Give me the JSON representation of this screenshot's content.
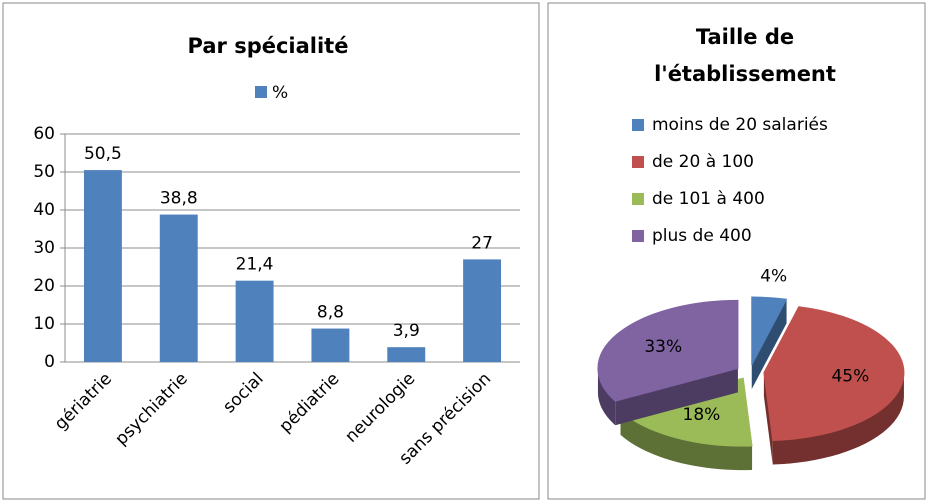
{
  "chart_data": [
    {
      "type": "bar",
      "title": "Par spécialité",
      "series_name": "%",
      "color": "#4f81bd",
      "categories": [
        "gériatrie",
        "psychiatrie",
        "social",
        "pédiatrie",
        "neurologie",
        "sans précision"
      ],
      "values": [
        50.5,
        38.8,
        21.4,
        8.8,
        3.9,
        27
      ],
      "value_labels": [
        "50,5",
        "38,8",
        "21,4",
        "8,8",
        "3,9",
        "27"
      ],
      "ylim": [
        0,
        60
      ],
      "yticks": [
        0,
        10,
        20,
        30,
        40,
        50,
        60
      ],
      "grid": true,
      "legend": "top"
    },
    {
      "type": "pie",
      "title_lines": [
        "Taille de",
        "l'établissement"
      ],
      "categories": [
        "moins de 20 salariés",
        "de 20 à 100",
        "de 101 à 400",
        "plus de 400"
      ],
      "values": [
        4,
        45,
        18,
        33
      ],
      "value_labels": [
        "4%",
        "45%",
        "18%",
        "33%"
      ],
      "colors": [
        "#4f81bd",
        "#c0504d",
        "#9bbb59",
        "#8064a2"
      ],
      "legend": "top"
    }
  ]
}
